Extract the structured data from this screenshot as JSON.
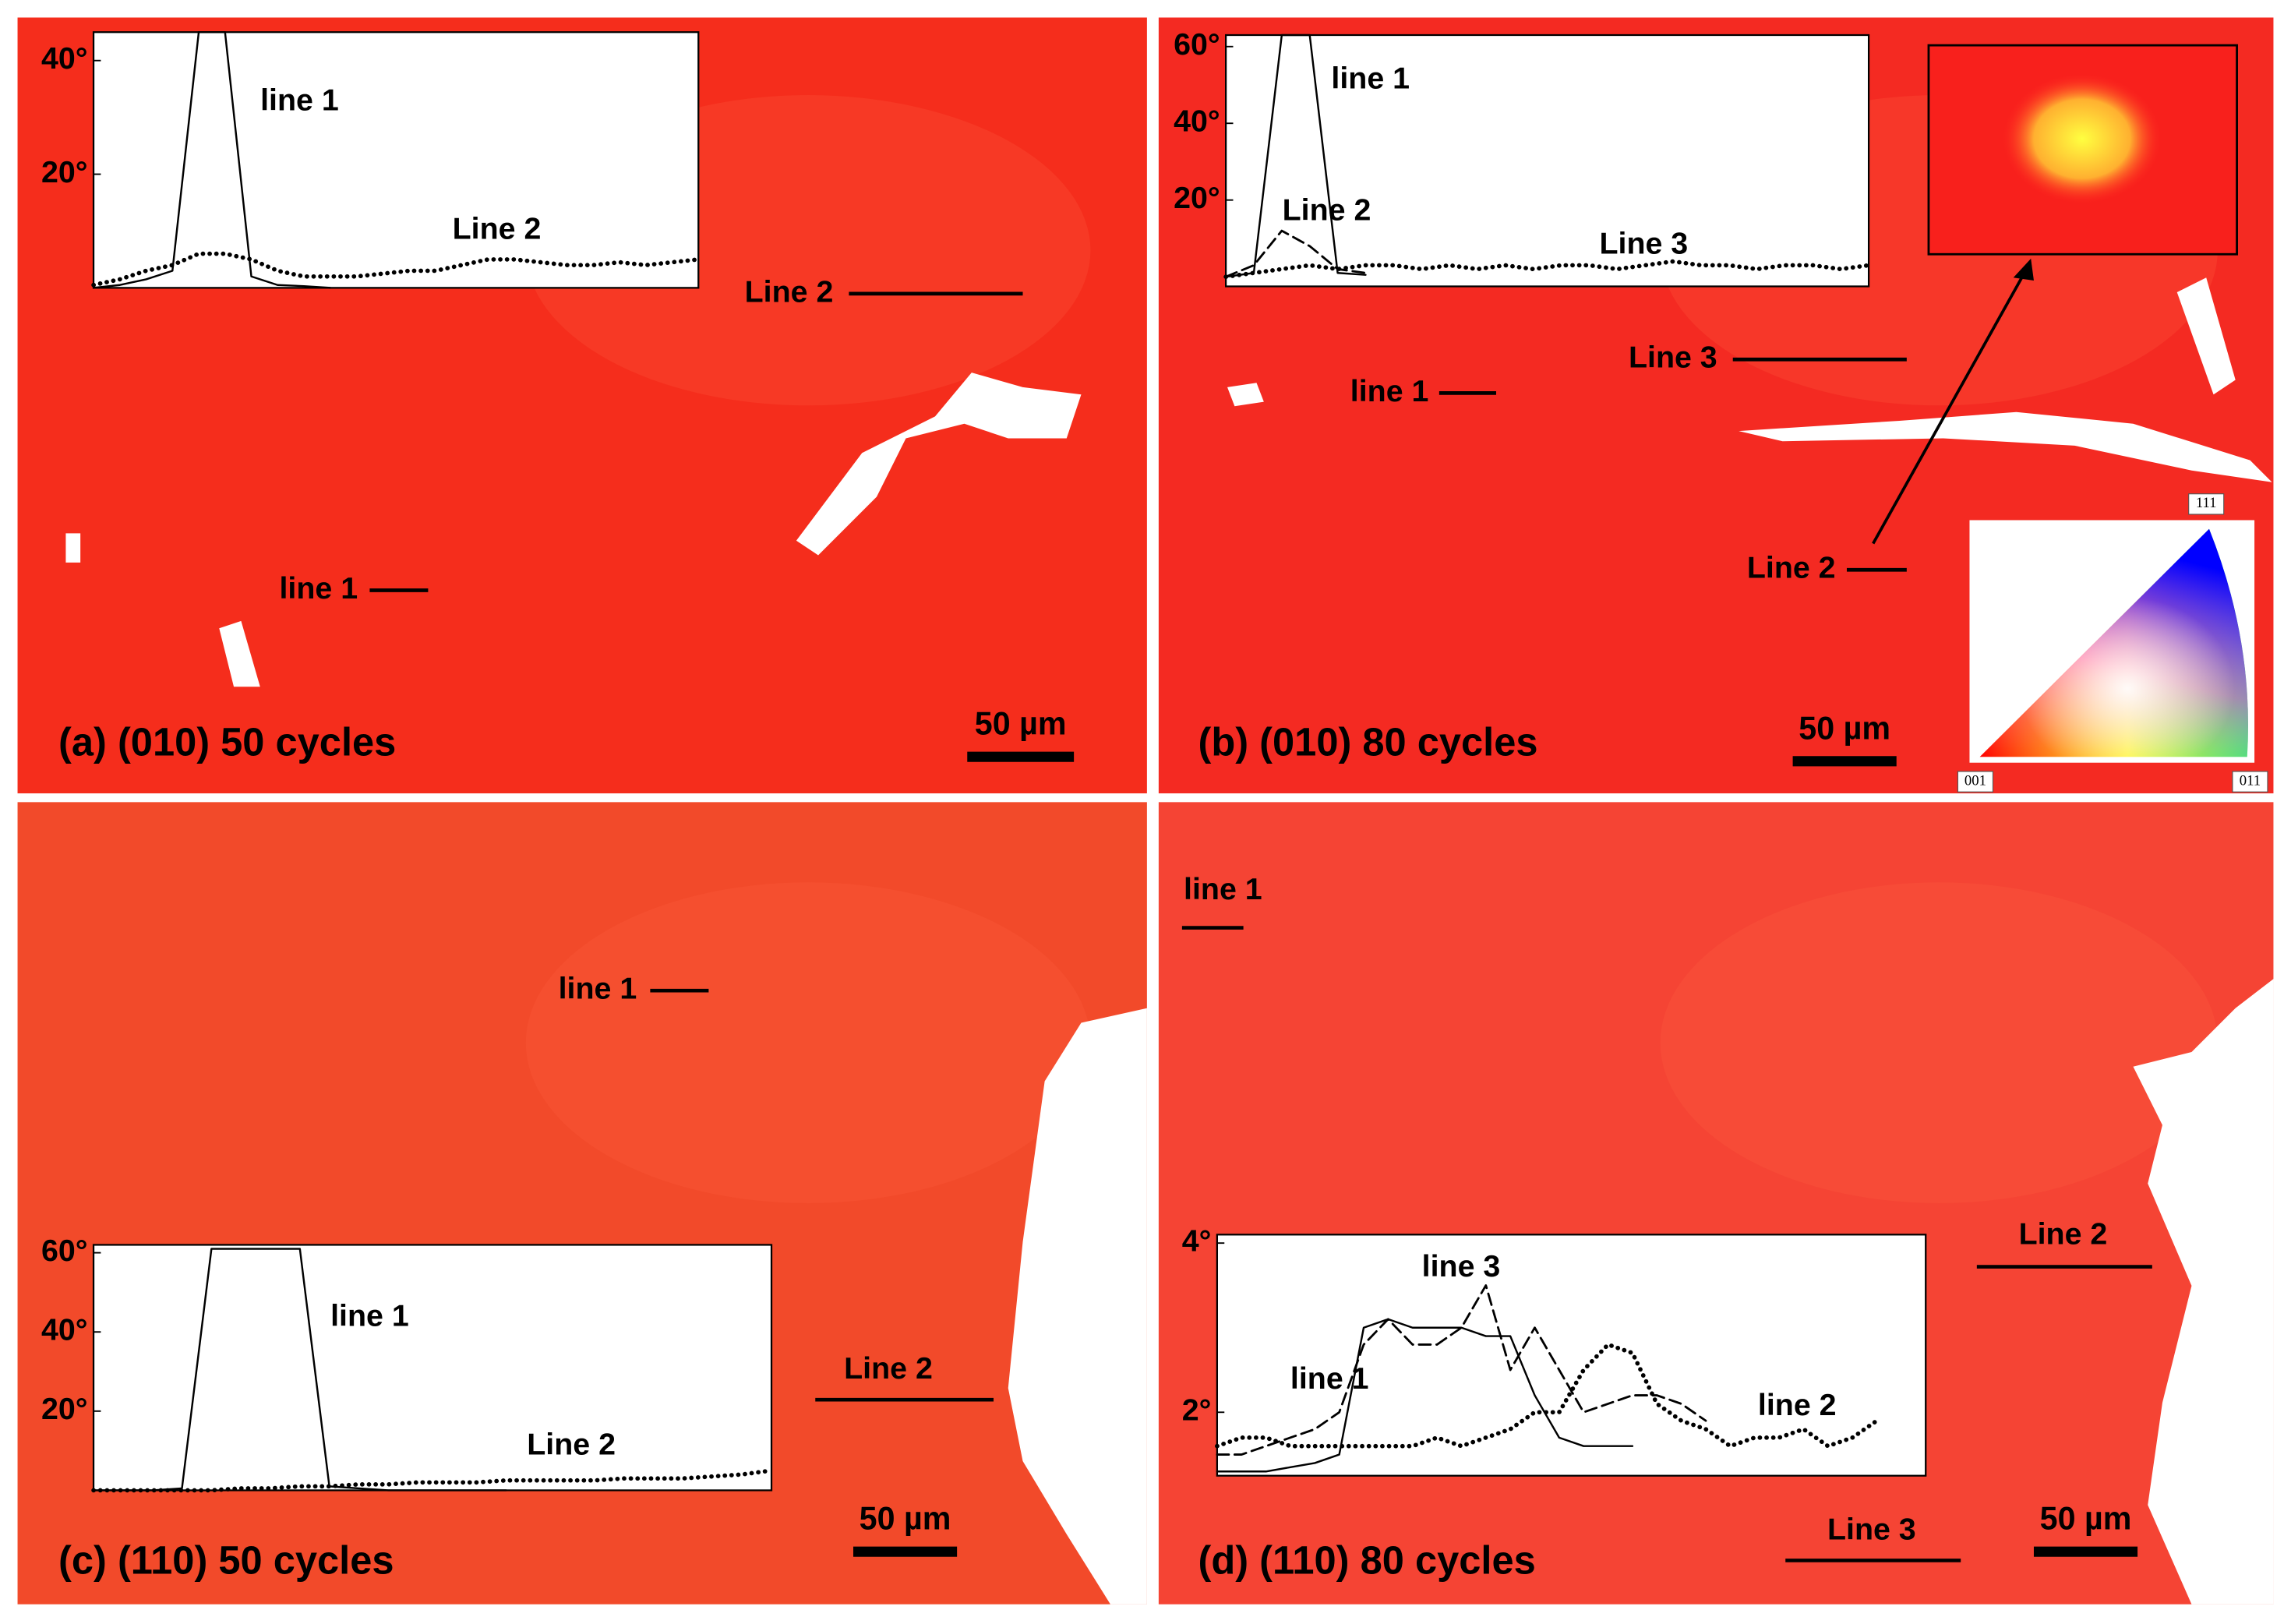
{
  "panels": [
    {
      "caption": "(a) (010) 50 cycles",
      "scale_bar": "50 µm",
      "labels": [
        "Line 2",
        "line 1"
      ]
    },
    {
      "caption": "(b) (010) 80 cycles",
      "scale_bar": "50 µm",
      "labels": [
        "Line 3",
        "line 1",
        "Line 2"
      ]
    },
    {
      "caption": "(c) (110) 50 cycles",
      "scale_bar": "50 µm",
      "labels": [
        "line 1",
        "Line 2"
      ]
    },
    {
      "caption": "(d) (110) 80 cycles",
      "scale_bar": "50 µm",
      "labels": [
        "line 1",
        "Line 2",
        "Line 3"
      ]
    }
  ],
  "ipf_legend": [
    "111",
    "001",
    "011"
  ],
  "chart_data": [
    {
      "type": "line",
      "ylim": [
        0,
        45
      ],
      "yticks": [
        {
          "value": 20,
          "label": "20°"
        },
        {
          "value": 40,
          "label": "40°"
        }
      ],
      "series": [
        {
          "name": "line 1",
          "color": "#000000",
          "style": "solid",
          "values": [
            0,
            0.5,
            1.5,
            3,
            45,
            45,
            2,
            0.5,
            0.3,
            0,
            null,
            null,
            null,
            null,
            null,
            null,
            null,
            null,
            null,
            null,
            null,
            null,
            null,
            null
          ]
        },
        {
          "name": "Line 2",
          "color": "#000000",
          "style": "dotted",
          "values": [
            0.5,
            1.5,
            3,
            4,
            6,
            6,
            5,
            3,
            2,
            2,
            2,
            2.5,
            3,
            3,
            4,
            5,
            5,
            4.5,
            4,
            4,
            4.5,
            4,
            4.5,
            5
          ]
        }
      ]
    },
    {
      "type": "line",
      "ylim": [
        -2.5,
        63
      ],
      "yticks": [
        {
          "value": 20,
          "label": "20°"
        },
        {
          "value": 40,
          "label": "40°"
        },
        {
          "value": 60,
          "label": "60°"
        }
      ],
      "series": [
        {
          "name": "line 1",
          "color": "#000000",
          "style": "solid",
          "values": [
            0,
            1,
            63,
            63,
            1,
            0.5,
            null,
            null,
            null,
            null,
            null,
            null,
            null,
            null,
            null,
            null,
            null,
            null,
            null,
            null,
            null,
            null,
            null,
            null
          ]
        },
        {
          "name": "Line 2",
          "color": "#000000",
          "style": "dashed",
          "values": [
            0,
            3,
            12,
            8,
            2,
            1,
            null,
            null,
            null,
            null,
            null,
            null,
            null,
            null,
            null,
            null,
            null,
            null,
            null,
            null,
            null,
            null,
            null,
            null
          ]
        },
        {
          "name": "Line 3",
          "color": "#000000",
          "style": "dotted",
          "values": [
            0,
            1,
            2,
            3,
            2,
            3,
            3,
            2,
            3,
            2,
            3,
            2,
            3,
            3,
            2,
            3,
            4,
            3,
            3,
            2,
            3,
            3,
            2,
            3
          ]
        }
      ]
    },
    {
      "type": "line",
      "ylim": [
        0,
        62
      ],
      "yticks": [
        {
          "value": 20,
          "label": "20°"
        },
        {
          "value": 40,
          "label": "40°"
        },
        {
          "value": 60,
          "label": "60°"
        }
      ],
      "series": [
        {
          "name": "line 1",
          "color": "#000000",
          "style": "solid",
          "values": [
            0,
            0,
            0,
            0.5,
            61,
            61,
            61,
            61,
            1,
            0.5,
            0,
            0,
            0,
            0,
            0,
            null,
            null,
            null,
            null,
            null,
            null,
            null,
            null,
            null
          ]
        },
        {
          "name": "Line 2",
          "color": "#000000",
          "style": "dotted",
          "values": [
            0,
            0,
            0,
            0,
            0,
            0.5,
            0.5,
            1,
            1,
            1.5,
            1.5,
            2,
            2,
            2,
            2.5,
            2.5,
            2.5,
            2.5,
            3,
            3,
            3,
            3.5,
            4,
            5
          ]
        }
      ]
    },
    {
      "type": "line",
      "ylim": [
        1.25,
        4.1
      ],
      "yticks": [
        {
          "value": 2,
          "label": "2°"
        },
        {
          "value": 4,
          "label": "4°"
        }
      ],
      "series": [
        {
          "name": "line 1",
          "color": "#000000",
          "style": "solid",
          "values": [
            1.3,
            1.3,
            1.3,
            1.35,
            1.4,
            1.5,
            3,
            3.1,
            3,
            3,
            3,
            2.9,
            2.9,
            2.2,
            1.7,
            1.6,
            1.6,
            1.6,
            null,
            null,
            null,
            null,
            null,
            null,
            null,
            null,
            null,
            null,
            null,
            null
          ]
        },
        {
          "name": "line 3",
          "color": "#000000",
          "style": "dashed",
          "values": [
            1.5,
            1.5,
            1.6,
            1.7,
            1.8,
            2,
            2.8,
            3.1,
            2.8,
            2.8,
            3,
            3.5,
            2.5,
            3,
            2.5,
            2,
            2.1,
            2.2,
            2.2,
            2.1,
            1.9,
            null,
            null,
            null,
            null,
            null,
            null,
            null,
            null,
            null
          ]
        },
        {
          "name": "line 2",
          "color": "#000000",
          "style": "dotted",
          "values": [
            1.6,
            1.7,
            1.7,
            1.6,
            1.6,
            1.6,
            1.6,
            1.6,
            1.6,
            1.7,
            1.6,
            1.7,
            1.8,
            2,
            2,
            2.5,
            2.8,
            2.7,
            2.1,
            1.9,
            1.8,
            1.6,
            1.7,
            1.7,
            1.8,
            1.6,
            1.7,
            1.9,
            null,
            null
          ]
        }
      ]
    }
  ]
}
